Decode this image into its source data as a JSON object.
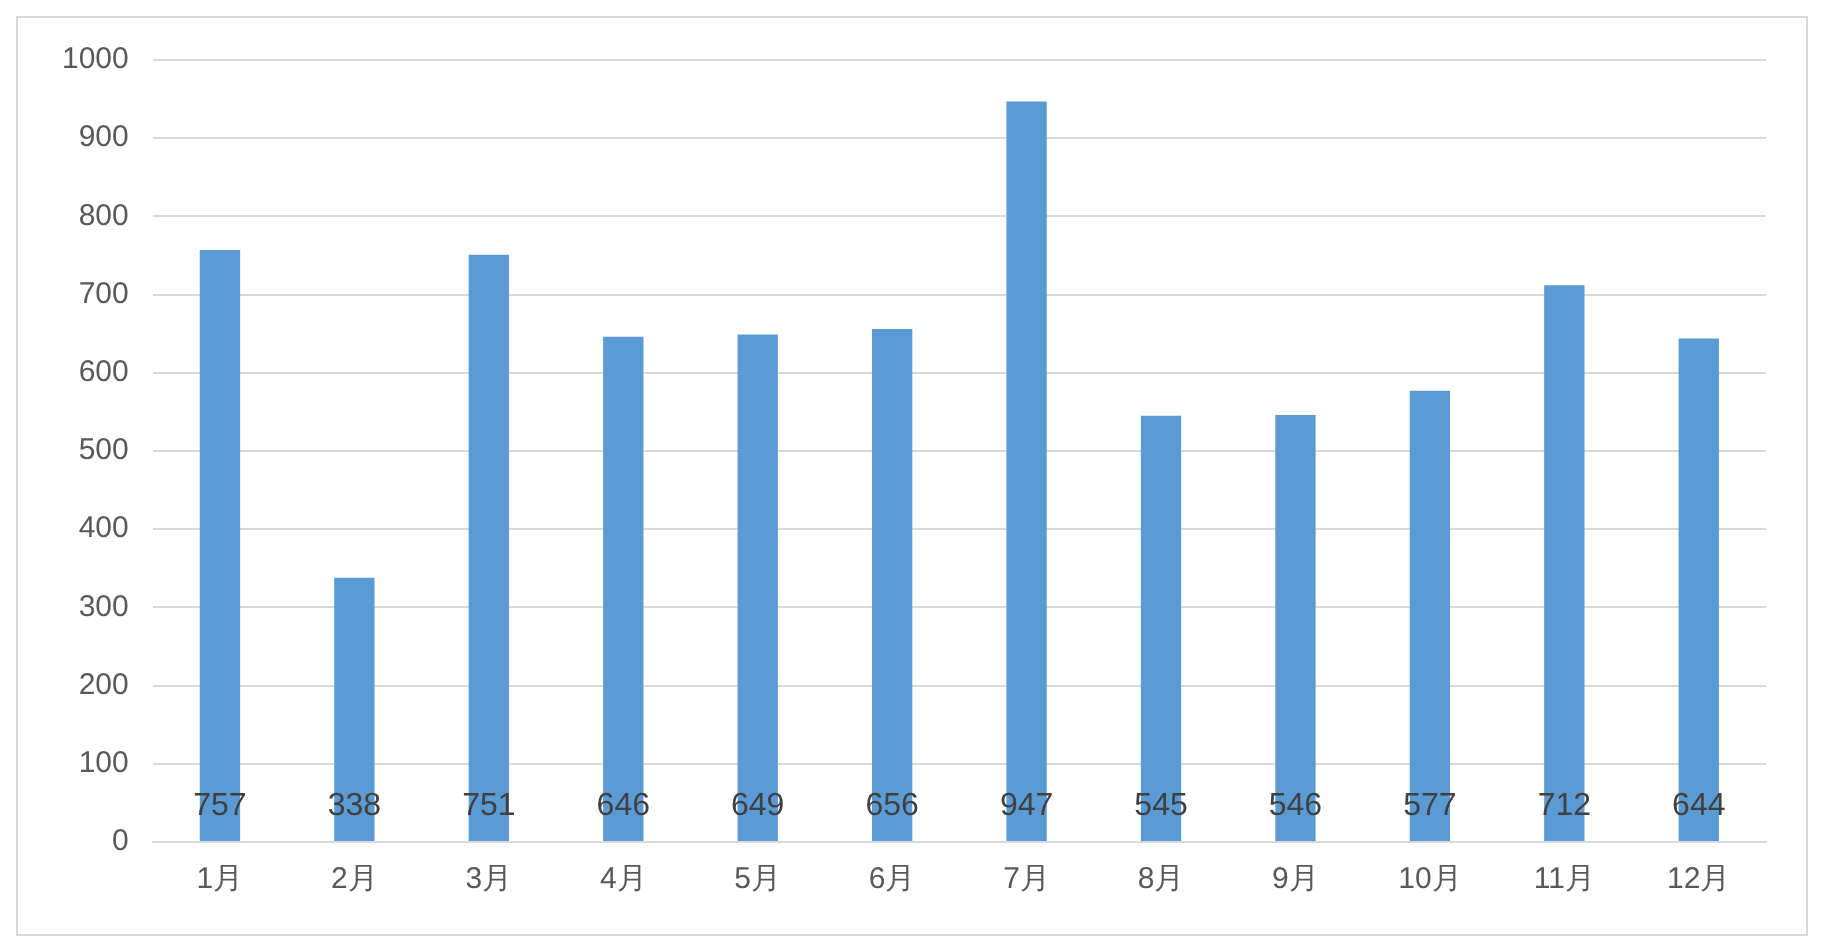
{
  "chart_data": {
    "type": "bar",
    "categories": [
      "1月",
      "2月",
      "3月",
      "4月",
      "5月",
      "6月",
      "7月",
      "8月",
      "9月",
      "10月",
      "11月",
      "12月"
    ],
    "values": [
      757,
      338,
      751,
      646,
      649,
      656,
      947,
      545,
      546,
      577,
      712,
      644
    ],
    "color": "#5b9bd5",
    "ylim": [
      0,
      1000
    ],
    "yticks": [
      0,
      100,
      200,
      300,
      400,
      500,
      600,
      700,
      800,
      900,
      1000
    ],
    "grid": "y",
    "data_labels": true
  }
}
